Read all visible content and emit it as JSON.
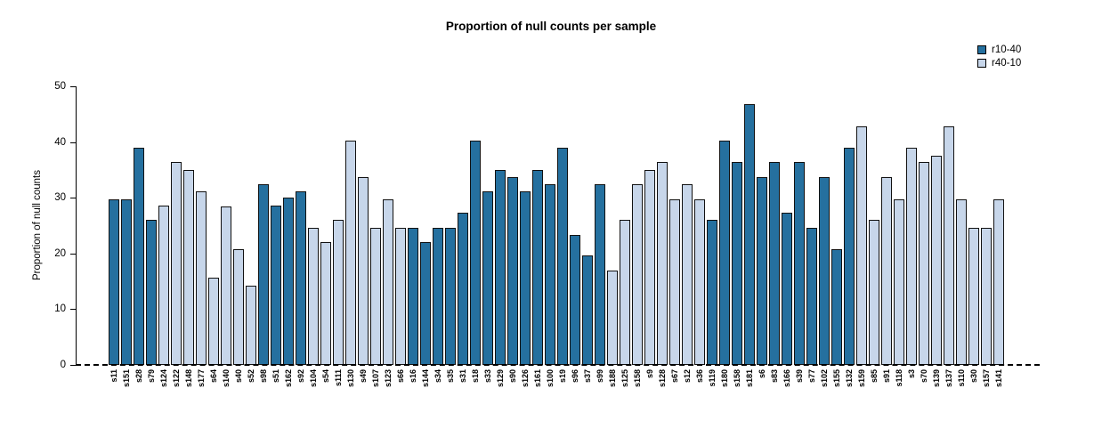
{
  "title": "Proportion of null counts per sample",
  "chart_data": {
    "type": "bar",
    "title": "Proportion of null counts per sample",
    "xlabel": "",
    "ylabel": "Proportion of null counts",
    "ylim": [
      0,
      50
    ],
    "yticks": [
      0,
      10,
      20,
      30,
      40,
      50
    ],
    "grid": false,
    "legend_position": "top-right",
    "series_names": [
      "r10-40",
      "r40-10"
    ],
    "colors": {
      "r10-40": "#25709f",
      "r40-10": "#c7d6ea"
    },
    "zero_line_style": "dashed",
    "bars": [
      {
        "sample": "s11",
        "value": 29.8,
        "group": "r10-40"
      },
      {
        "sample": "s151",
        "value": 29.8,
        "group": "r10-40"
      },
      {
        "sample": "s28",
        "value": 39.0,
        "group": "r10-40"
      },
      {
        "sample": "s79",
        "value": 26.0,
        "group": "r10-40"
      },
      {
        "sample": "s124",
        "value": 28.6,
        "group": "r40-10"
      },
      {
        "sample": "s122",
        "value": 36.4,
        "group": "r40-10"
      },
      {
        "sample": "s148",
        "value": 35.0,
        "group": "r40-10"
      },
      {
        "sample": "s177",
        "value": 31.2,
        "group": "r40-10"
      },
      {
        "sample": "s64",
        "value": 15.6,
        "group": "r40-10"
      },
      {
        "sample": "s140",
        "value": 28.5,
        "group": "r40-10"
      },
      {
        "sample": "s40",
        "value": 20.8,
        "group": "r40-10"
      },
      {
        "sample": "s52",
        "value": 14.3,
        "group": "r40-10"
      },
      {
        "sample": "s98",
        "value": 32.4,
        "group": "r10-40"
      },
      {
        "sample": "s51",
        "value": 28.6,
        "group": "r10-40"
      },
      {
        "sample": "s162",
        "value": 30.0,
        "group": "r10-40"
      },
      {
        "sample": "s92",
        "value": 31.2,
        "group": "r10-40"
      },
      {
        "sample": "s104",
        "value": 24.6,
        "group": "r40-10"
      },
      {
        "sample": "s54",
        "value": 22.1,
        "group": "r40-10"
      },
      {
        "sample": "s111",
        "value": 26.0,
        "group": "r40-10"
      },
      {
        "sample": "s130",
        "value": 40.2,
        "group": "r40-10"
      },
      {
        "sample": "s49",
        "value": 33.7,
        "group": "r40-10"
      },
      {
        "sample": "s107",
        "value": 24.6,
        "group": "r40-10"
      },
      {
        "sample": "s123",
        "value": 29.8,
        "group": "r40-10"
      },
      {
        "sample": "s66",
        "value": 24.6,
        "group": "r40-10"
      },
      {
        "sample": "s16",
        "value": 24.6,
        "group": "r10-40"
      },
      {
        "sample": "s144",
        "value": 22.1,
        "group": "r10-40"
      },
      {
        "sample": "s34",
        "value": 24.6,
        "group": "r10-40"
      },
      {
        "sample": "s35",
        "value": 24.6,
        "group": "r10-40"
      },
      {
        "sample": "s31",
        "value": 27.3,
        "group": "r10-40"
      },
      {
        "sample": "s18",
        "value": 40.2,
        "group": "r10-40"
      },
      {
        "sample": "s33",
        "value": 31.2,
        "group": "r10-40"
      },
      {
        "sample": "s129",
        "value": 35.0,
        "group": "r10-40"
      },
      {
        "sample": "s90",
        "value": 33.7,
        "group": "r10-40"
      },
      {
        "sample": "s126",
        "value": 31.2,
        "group": "r10-40"
      },
      {
        "sample": "s161",
        "value": 35.0,
        "group": "r10-40"
      },
      {
        "sample": "s100",
        "value": 32.4,
        "group": "r10-40"
      },
      {
        "sample": "s19",
        "value": 39.0,
        "group": "r10-40"
      },
      {
        "sample": "s96",
        "value": 23.4,
        "group": "r10-40"
      },
      {
        "sample": "s37",
        "value": 19.6,
        "group": "r10-40"
      },
      {
        "sample": "s99",
        "value": 32.4,
        "group": "r10-40"
      },
      {
        "sample": "s188",
        "value": 17.0,
        "group": "r40-10"
      },
      {
        "sample": "s125",
        "value": 26.0,
        "group": "r40-10"
      },
      {
        "sample": "s158",
        "value": 32.4,
        "group": "r40-10"
      },
      {
        "sample": "s9",
        "value": 35.0,
        "group": "r40-10"
      },
      {
        "sample": "s128",
        "value": 36.4,
        "group": "r40-10"
      },
      {
        "sample": "s67",
        "value": 29.8,
        "group": "r40-10"
      },
      {
        "sample": "s12",
        "value": 32.5,
        "group": "r40-10"
      },
      {
        "sample": "s36",
        "value": 29.8,
        "group": "r40-10"
      },
      {
        "sample": "s119",
        "value": 26.0,
        "group": "r10-40"
      },
      {
        "sample": "s180",
        "value": 40.2,
        "group": "r10-40"
      },
      {
        "sample": "s158",
        "value": 36.4,
        "group": "r10-40"
      },
      {
        "sample": "s181",
        "value": 46.8,
        "group": "r10-40"
      },
      {
        "sample": "s6",
        "value": 33.7,
        "group": "r10-40"
      },
      {
        "sample": "s83",
        "value": 36.4,
        "group": "r10-40"
      },
      {
        "sample": "s166",
        "value": 27.3,
        "group": "r10-40"
      },
      {
        "sample": "s39",
        "value": 36.4,
        "group": "r10-40"
      },
      {
        "sample": "s77",
        "value": 24.6,
        "group": "r10-40"
      },
      {
        "sample": "s102",
        "value": 33.7,
        "group": "r10-40"
      },
      {
        "sample": "s155",
        "value": 20.8,
        "group": "r10-40"
      },
      {
        "sample": "s132",
        "value": 39.0,
        "group": "r10-40"
      },
      {
        "sample": "s159",
        "value": 42.8,
        "group": "r40-10"
      },
      {
        "sample": "s85",
        "value": 26.0,
        "group": "r40-10"
      },
      {
        "sample": "s91",
        "value": 33.7,
        "group": "r40-10"
      },
      {
        "sample": "s118",
        "value": 29.8,
        "group": "r40-10"
      },
      {
        "sample": "s3",
        "value": 39.0,
        "group": "r40-10"
      },
      {
        "sample": "s70",
        "value": 36.4,
        "group": "r40-10"
      },
      {
        "sample": "s139",
        "value": 37.6,
        "group": "r40-10"
      },
      {
        "sample": "s137",
        "value": 42.8,
        "group": "r40-10"
      },
      {
        "sample": "s110",
        "value": 29.8,
        "group": "r40-10"
      },
      {
        "sample": "s30",
        "value": 24.6,
        "group": "r40-10"
      },
      {
        "sample": "s157",
        "value": 24.6,
        "group": "r40-10"
      },
      {
        "sample": "s141",
        "value": 29.8,
        "group": "r40-10"
      }
    ]
  }
}
